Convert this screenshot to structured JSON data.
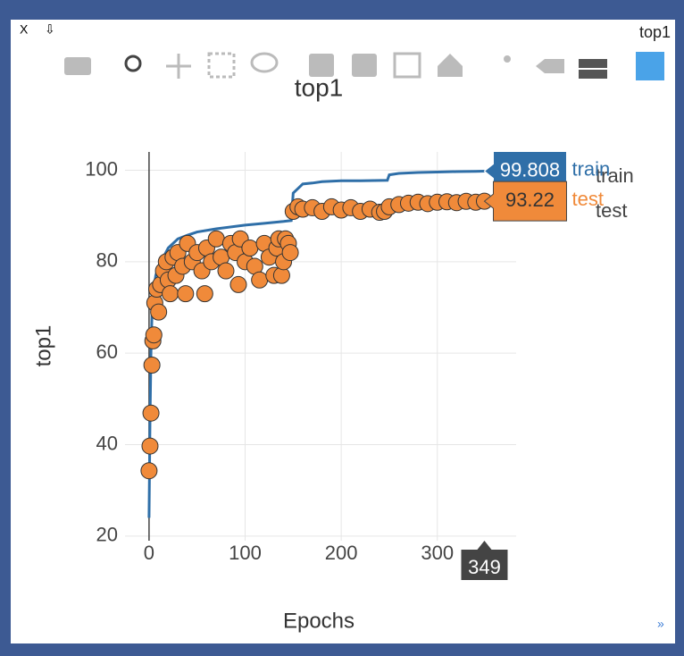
{
  "window": {
    "title": "top1",
    "close": "X",
    "pin": "⇩"
  },
  "chart_data": {
    "type": "line-scatter",
    "title": "top1",
    "x_label": "Epochs",
    "y_label": "top1",
    "xlim": [
      -25,
      382
    ],
    "ylim": [
      19,
      104
    ],
    "xticks": [
      0,
      100,
      200,
      300
    ],
    "yticks": [
      20,
      40,
      60,
      80,
      100
    ],
    "grid": true,
    "series": [
      {
        "name": "train",
        "color": "#2f6fa8",
        "mode": "line",
        "x": [
          0,
          1,
          2,
          3,
          5,
          7,
          10,
          15,
          20,
          30,
          40,
          50,
          70,
          100,
          120,
          140,
          148,
          150,
          155,
          160,
          170,
          180,
          200,
          220,
          248,
          250,
          260,
          280,
          300,
          320,
          340,
          349
        ],
        "values": [
          24,
          45,
          60,
          68,
          74,
          77,
          79,
          81,
          83,
          85,
          85.8,
          86.5,
          87.2,
          88,
          88.4,
          88.8,
          89,
          95,
          96,
          97,
          97.2,
          97.5,
          97.7,
          97.7,
          97.8,
          99,
          99.3,
          99.5,
          99.6,
          99.7,
          99.75,
          99.808
        ]
      },
      {
        "name": "test",
        "color": "#f08a3a",
        "mode": "markers",
        "x": [
          0,
          1,
          2,
          3,
          4,
          5,
          6,
          8,
          10,
          12,
          15,
          18,
          20,
          22,
          25,
          28,
          30,
          35,
          38,
          40,
          45,
          50,
          55,
          58,
          60,
          65,
          70,
          75,
          80,
          85,
          90,
          93,
          95,
          100,
          105,
          110,
          115,
          120,
          125,
          130,
          133,
          135,
          138,
          140,
          142,
          145,
          147,
          150,
          155,
          160,
          170,
          180,
          190,
          200,
          210,
          220,
          230,
          240,
          245,
          250,
          260,
          270,
          280,
          290,
          300,
          310,
          320,
          330,
          340,
          349
        ],
        "values": [
          34.3,
          39.7,
          46.9,
          57.4,
          62.7,
          64,
          71,
          74,
          69,
          75,
          78,
          80,
          76,
          73,
          81,
          77,
          82,
          79,
          73,
          84,
          80,
          82,
          78,
          73,
          83,
          80,
          85,
          81,
          78,
          84,
          82,
          75,
          85,
          80,
          83,
          79,
          76,
          84,
          81,
          77,
          83,
          85,
          77,
          80,
          85,
          84,
          82,
          91,
          92,
          91.5,
          91.8,
          91,
          92,
          91.3,
          91.8,
          91,
          91.5,
          90.8,
          91,
          92,
          92.5,
          92.8,
          93,
          92.7,
          93,
          93.1,
          92.9,
          93.2,
          93,
          93.22
        ]
      }
    ],
    "hover": {
      "x": 349,
      "values": [
        99.808,
        93.22
      ]
    }
  }
}
